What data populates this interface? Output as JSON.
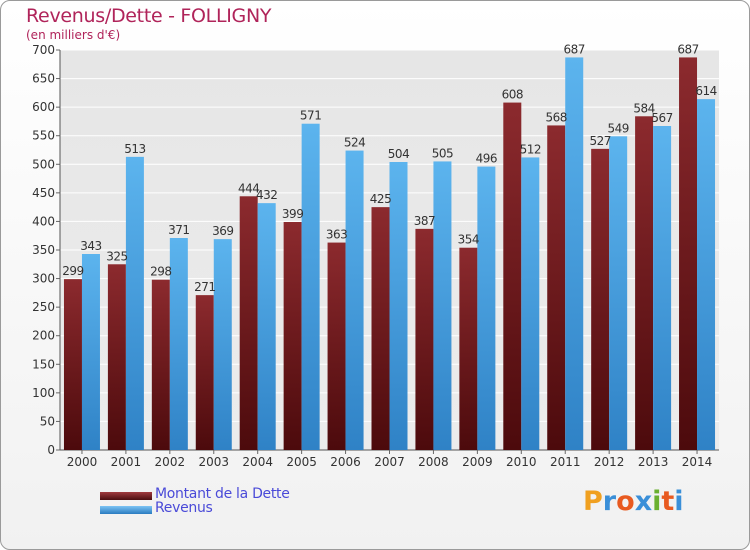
{
  "header": {
    "title": "Revenus/Dette - FOLLIGNY",
    "subtitle": "(en milliers d'€)"
  },
  "chart_data": {
    "type": "bar",
    "title": "Revenus/Dette - FOLLIGNY",
    "subtitle": "(en milliers d'€)",
    "xlabel": "",
    "ylabel": "",
    "ylim": [
      0,
      700
    ],
    "yticks": [
      0,
      50,
      100,
      150,
      200,
      250,
      300,
      350,
      400,
      450,
      500,
      550,
      600,
      650,
      700
    ],
    "grid": true,
    "categories": [
      "2000",
      "2001",
      "2002",
      "2003",
      "2004",
      "2005",
      "2006",
      "2007",
      "2008",
      "2009",
      "2010",
      "2011",
      "2012",
      "2013",
      "2014"
    ],
    "series": [
      {
        "name": "Montant de la Dette",
        "color": "#7a1f24",
        "values": [
          299,
          325,
          298,
          271,
          444,
          399,
          363,
          425,
          387,
          354,
          608,
          568,
          527,
          584,
          687
        ]
      },
      {
        "name": "Revenus",
        "color": "#4aa6e8",
        "values": [
          343,
          513,
          371,
          369,
          432,
          571,
          524,
          504,
          505,
          496,
          512,
          687,
          549,
          567,
          614
        ]
      }
    ],
    "legend_position": "bottom-left"
  },
  "legend": {
    "items": [
      {
        "label": "Montant de la Dette",
        "color": "#7a1f24"
      },
      {
        "label": "Revenus",
        "color": "#4aa6e8"
      }
    ]
  },
  "logo": {
    "letters": [
      "P",
      "r",
      "o",
      "x",
      "i",
      "t",
      "i"
    ],
    "colors": [
      "#f0a020",
      "#3a8fd8",
      "#e85a20",
      "#3a8fd8",
      "#6ab030",
      "#e85a20",
      "#3a8fd8"
    ]
  }
}
